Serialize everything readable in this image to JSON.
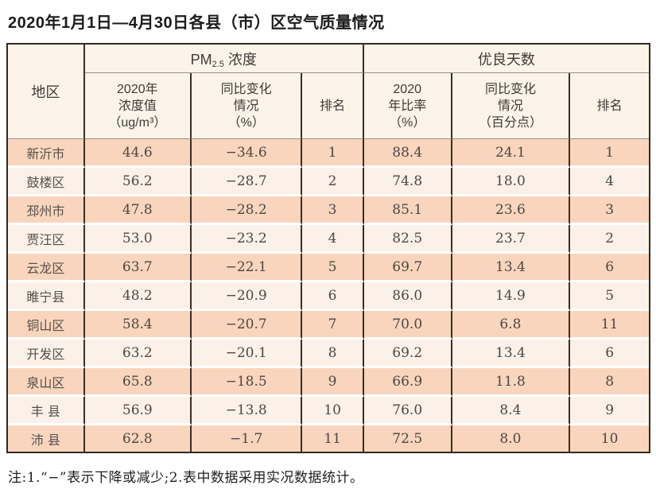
{
  "page": {
    "title": "2020年1月1日—4月30日各县（市）区空气质量情况",
    "note": "注:1.“−”表示下降或减少;2.表中数据采用实况数据统计。"
  },
  "colors": {
    "row_salmon": "#f9d5bd",
    "row_light": "#fcf1e9",
    "header_bg": "#fcf4e9",
    "border_dark": "#32291f",
    "header_divider": "#9a9288"
  },
  "table": {
    "header": {
      "region": "地区",
      "pm_group": {
        "prefix": "PM",
        "sub": "2.5",
        "suffix": "浓度"
      },
      "days_group": "优良天数",
      "sub_headers": {
        "conc": {
          "l1": "2020年",
          "l2": "浓度值",
          "l3": "（ug/m³）"
        },
        "conc_change": {
          "l1": "同比变化",
          "l2": "情况",
          "l3": "（%）"
        },
        "rank1": {
          "l1": "排名"
        },
        "ratio": {
          "l1": "2020",
          "l2": "年比率",
          "l3": "（%）"
        },
        "ratio_change": {
          "l1": "同比变化",
          "l2": "情况",
          "l3": "（百分点）"
        },
        "rank2": {
          "l1": "排名"
        }
      }
    },
    "rows": [
      [
        "新沂市",
        "44.6",
        "−34.6",
        "1",
        "88.4",
        "24.1",
        "1"
      ],
      [
        "鼓楼区",
        "56.2",
        "−28.7",
        "2",
        "74.8",
        "18.0",
        "4"
      ],
      [
        "邳州市",
        "47.8",
        "−28.2",
        "3",
        "85.1",
        "23.6",
        "3"
      ],
      [
        "贾汪区",
        "53.0",
        "−23.2",
        "4",
        "82.5",
        "23.7",
        "2"
      ],
      [
        "云龙区",
        "63.7",
        "−22.1",
        "5",
        "69.7",
        "13.4",
        "6"
      ],
      [
        "睢宁县",
        "48.2",
        "−20.9",
        "6",
        "86.0",
        "14.9",
        "5"
      ],
      [
        "铜山区",
        "58.4",
        "−20.7",
        "7",
        "70.0",
        "6.8",
        "11"
      ],
      [
        "开发区",
        "63.2",
        "−20.1",
        "8",
        "69.2",
        "13.4",
        "6"
      ],
      [
        "泉山区",
        "65.8",
        "−18.5",
        "9",
        "66.9",
        "11.8",
        "8"
      ],
      [
        "丰 县",
        "56.9",
        "−13.8",
        "10",
        "76.0",
        "8.4",
        "9"
      ],
      [
        "沛 县",
        "62.8",
        "−1.7",
        "11",
        "72.5",
        "8.0",
        "10"
      ]
    ]
  }
}
